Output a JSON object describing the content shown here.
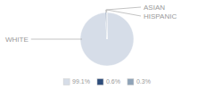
{
  "chart_data": {
    "type": "pie",
    "categories": [
      "WHITE",
      "ASIAN",
      "HISPANIC"
    ],
    "values": [
      99.1,
      0.6,
      0.3
    ],
    "value_labels": [
      "99.1%",
      "0.6%",
      "0.3%"
    ],
    "colors": [
      "#d6dde8",
      "#2e4d7b",
      "#8fa3b8"
    ],
    "legend": "bottom"
  }
}
